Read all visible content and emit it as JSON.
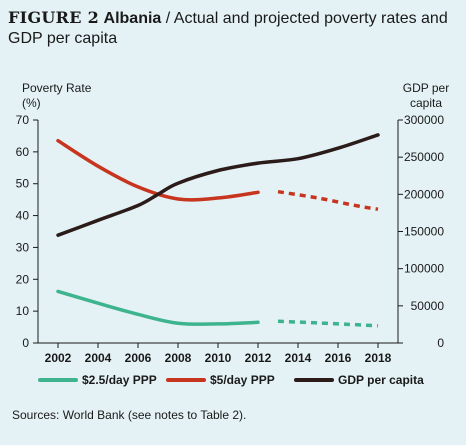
{
  "figure": {
    "label": "FIGURE 2",
    "country": "Albania",
    "separator": "/",
    "title": "Actual and projected poverty rates and GDP per capita"
  },
  "sources": "Sources: World Bank (see notes to Table 2).",
  "colors": {
    "background": "#e4f2f5",
    "green": "#3db38e",
    "red": "#c8351f",
    "dark": "#2b1c1a"
  },
  "chart_data": {
    "type": "line",
    "ylabel_left": [
      "Poverty Rate",
      "(%)"
    ],
    "ylabel_right": [
      "GDP per",
      "capita"
    ],
    "x_ticks": [
      "2002",
      "2004",
      "2006",
      "2008",
      "2010",
      "2012",
      "2014",
      "2016",
      "2018"
    ],
    "y_left_ticks": [
      "0",
      "10",
      "20",
      "30",
      "40",
      "50",
      "60",
      "70"
    ],
    "y_right_ticks": [
      "0",
      "50000",
      "100000",
      "150000",
      "200000",
      "250000",
      "300000"
    ],
    "xlim": [
      2001,
      2019
    ],
    "ylim_left": [
      0,
      70
    ],
    "ylim_right": [
      0,
      300000
    ],
    "legend_position": "bottom",
    "series": [
      {
        "name": "$2.5/day PPP",
        "axis": "left",
        "color": "#3db38e",
        "actual": [
          [
            2002,
            16.2
          ],
          [
            2004,
            12.5
          ],
          [
            2006,
            9.0
          ],
          [
            2008,
            6.2
          ],
          [
            2010,
            6.0
          ],
          [
            2012,
            6.5
          ]
        ],
        "projected": [
          [
            2013,
            6.8
          ],
          [
            2015,
            6.3
          ],
          [
            2017,
            5.7
          ],
          [
            2018,
            5.4
          ]
        ]
      },
      {
        "name": "$5/day PPP",
        "axis": "left",
        "color": "#c8351f",
        "actual": [
          [
            2002,
            63.5
          ],
          [
            2004,
            55.5
          ],
          [
            2006,
            49.0
          ],
          [
            2008,
            45.2
          ],
          [
            2010,
            45.5
          ],
          [
            2012,
            47.3
          ]
        ],
        "projected": [
          [
            2013,
            47.5
          ],
          [
            2015,
            45.5
          ],
          [
            2017,
            43.0
          ],
          [
            2018,
            42.0
          ]
        ]
      },
      {
        "name": "GDP per capita",
        "axis": "right",
        "color": "#2b1c1a",
        "actual": [
          [
            2002,
            145000
          ],
          [
            2004,
            165000
          ],
          [
            2006,
            185000
          ],
          [
            2007,
            200000
          ],
          [
            2008,
            215000
          ],
          [
            2010,
            232000
          ],
          [
            2012,
            242000
          ],
          [
            2014,
            248000
          ],
          [
            2016,
            262000
          ],
          [
            2018,
            280000
          ]
        ]
      }
    ]
  }
}
